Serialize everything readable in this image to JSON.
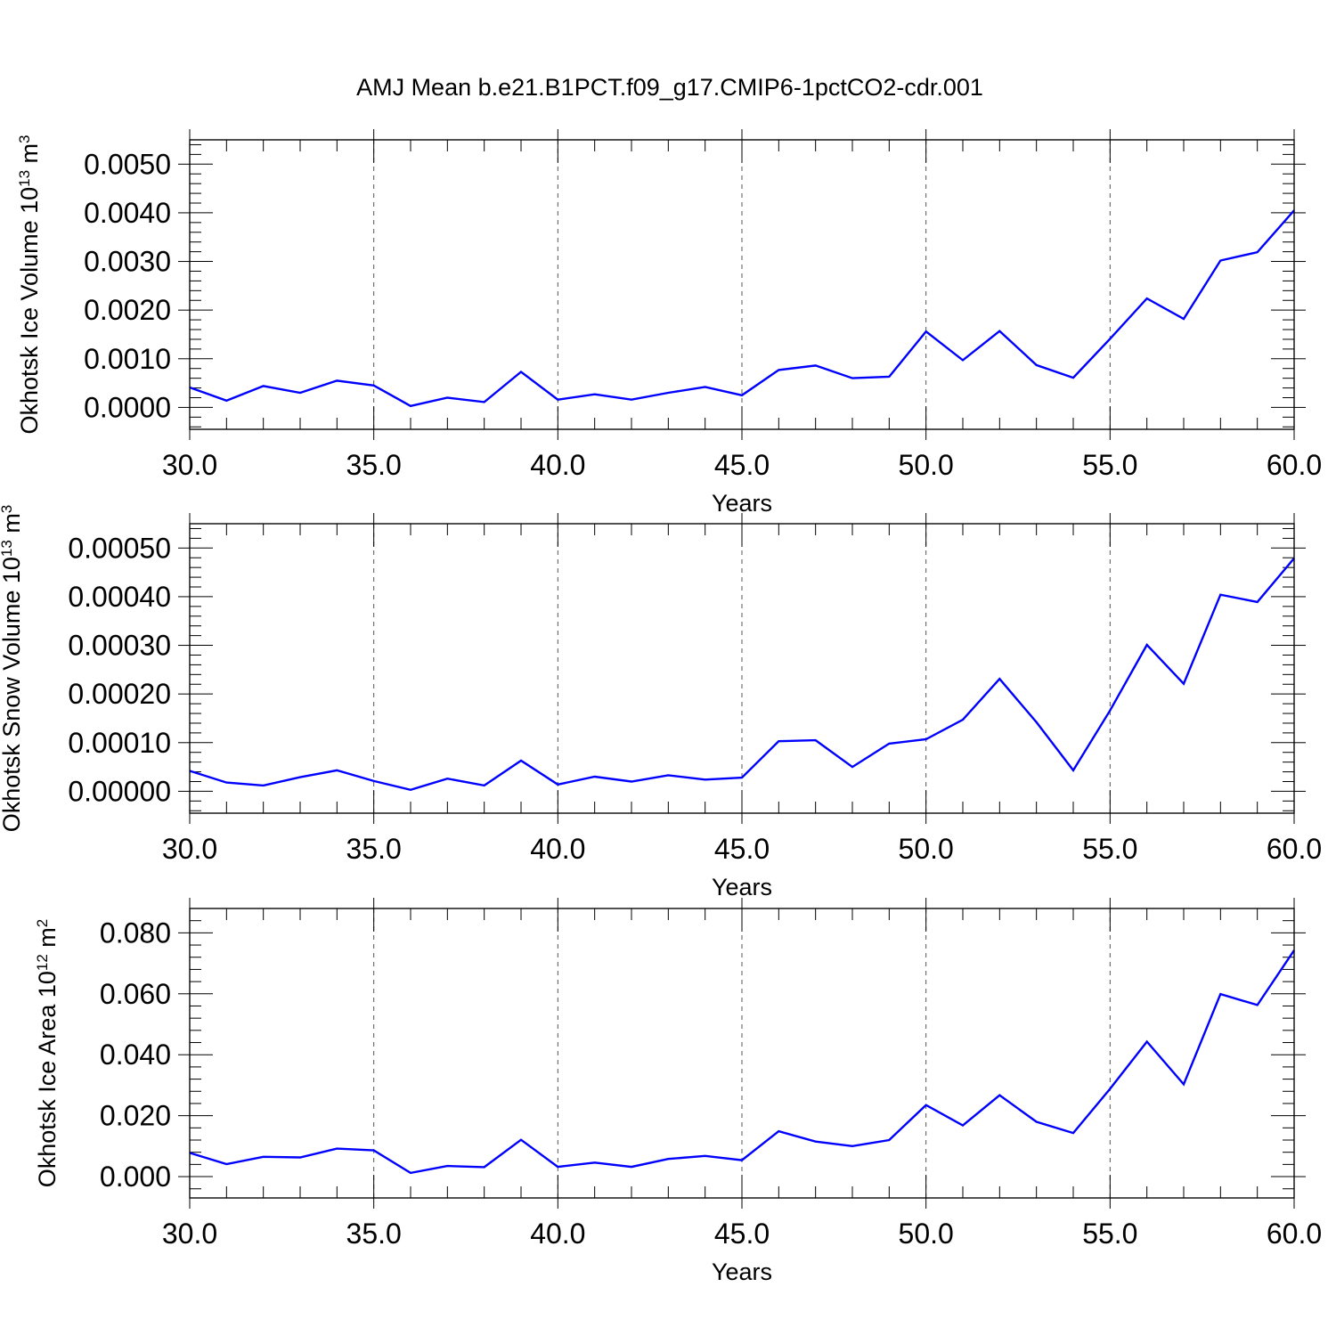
{
  "figure": {
    "title": "AMJ Mean b.e21.B1PCT.f09_g17.CMIP6-1pctCO2-cdr.001",
    "line_color": "#0000ff"
  },
  "chart_data": [
    {
      "type": "line",
      "title": "",
      "xlabel": "Years",
      "ylabel": {
        "main": "Okhotsk Ice Volume 10",
        "exp": "13",
        "unit": " m",
        "unit_exp": "3"
      },
      "xlim": [
        30,
        60
      ],
      "ylim": [
        -0.00045,
        0.0055
      ],
      "x_ticks": [
        "30.0",
        "35.0",
        "40.0",
        "45.0",
        "50.0",
        "55.0",
        "60.0"
      ],
      "y_ticks": [
        "0.0000",
        "0.0010",
        "0.0020",
        "0.0030",
        "0.0040",
        "0.0050"
      ],
      "y_tick_values": [
        0,
        0.001,
        0.002,
        0.003,
        0.004,
        0.005
      ],
      "grid": "vertical dashed",
      "series": [
        {
          "x": [
            30,
            31,
            32,
            33,
            34,
            35,
            36,
            37,
            38,
            39,
            40,
            41,
            42,
            43,
            44,
            45,
            46,
            47,
            48,
            49,
            50,
            51,
            52,
            53,
            54,
            55,
            56,
            57,
            58,
            59,
            60
          ],
          "values": [
            0.00041,
            0.00014,
            0.00044,
            0.0003,
            0.00055,
            0.00045,
            3e-05,
            0.0002,
            0.00011,
            0.00073,
            0.00016,
            0.00027,
            0.00016,
            0.0003,
            0.00042,
            0.00025,
            0.00077,
            0.00086,
            0.0006,
            0.00063,
            0.00156,
            0.00097,
            0.00157,
            0.00087,
            0.00061,
            0.00141,
            0.00224,
            0.00182,
            0.00302,
            0.00319,
            0.00405
          ]
        }
      ]
    },
    {
      "type": "line",
      "title": "",
      "xlabel": "Years",
      "ylabel": {
        "main": "Okhotsk Snow Volume 10",
        "exp": "13",
        "unit": " m",
        "unit_exp": "3"
      },
      "xlim": [
        30,
        60
      ],
      "ylim": [
        -4.5e-05,
        0.00055
      ],
      "x_ticks": [
        "30.0",
        "35.0",
        "40.0",
        "45.0",
        "50.0",
        "55.0",
        "60.0"
      ],
      "y_ticks": [
        "0.00000",
        "0.00010",
        "0.00020",
        "0.00030",
        "0.00040",
        "0.00050"
      ],
      "y_tick_values": [
        0,
        0.0001,
        0.0002,
        0.0003,
        0.0004,
        0.0005
      ],
      "grid": "vertical dashed",
      "series": [
        {
          "x": [
            30,
            31,
            32,
            33,
            34,
            35,
            36,
            37,
            38,
            39,
            40,
            41,
            42,
            43,
            44,
            45,
            46,
            47,
            48,
            49,
            50,
            51,
            52,
            53,
            54,
            55,
            56,
            57,
            58,
            59,
            60
          ],
          "values": [
            4.2e-05,
            1.8e-05,
            1.2e-05,
            2.9e-05,
            4.3e-05,
            2.1e-05,
            3e-06,
            2.6e-05,
            1.2e-05,
            6.3e-05,
            1.4e-05,
            3e-05,
            2e-05,
            3.3e-05,
            2.4e-05,
            2.8e-05,
            0.000103,
            0.000105,
            5e-05,
            9.8e-05,
            0.000107,
            0.000147,
            0.000231,
            0.000142,
            4.3e-05,
            0.000166,
            0.000301,
            0.000221,
            0.000404,
            0.000389,
            0.000479
          ]
        }
      ]
    },
    {
      "type": "line",
      "title": "",
      "xlabel": "Years",
      "ylabel": {
        "main": "Okhotsk Ice Area 10",
        "exp": "12",
        "unit": " m",
        "unit_exp": "2"
      },
      "xlim": [
        30,
        60
      ],
      "ylim": [
        -0.007,
        0.088
      ],
      "x_ticks": [
        "30.0",
        "35.0",
        "40.0",
        "45.0",
        "50.0",
        "55.0",
        "60.0"
      ],
      "y_ticks": [
        "0.000",
        "0.020",
        "0.040",
        "0.060",
        "0.080"
      ],
      "y_tick_values": [
        0,
        0.02,
        0.04,
        0.06,
        0.08
      ],
      "grid": "vertical dashed",
      "series": [
        {
          "x": [
            30,
            31,
            32,
            33,
            34,
            35,
            36,
            37,
            38,
            39,
            40,
            41,
            42,
            43,
            44,
            45,
            46,
            47,
            48,
            49,
            50,
            51,
            52,
            53,
            54,
            55,
            56,
            57,
            58,
            59,
            60
          ],
          "values": [
            0.0078,
            0.0041,
            0.0065,
            0.0063,
            0.0092,
            0.0086,
            0.0012,
            0.0035,
            0.0031,
            0.0121,
            0.0032,
            0.0046,
            0.0032,
            0.0058,
            0.0068,
            0.0054,
            0.0149,
            0.0115,
            0.01,
            0.012,
            0.0235,
            0.0168,
            0.0267,
            0.018,
            0.0143,
            0.0288,
            0.0443,
            0.0303,
            0.0599,
            0.0563,
            0.0743
          ]
        }
      ]
    }
  ]
}
